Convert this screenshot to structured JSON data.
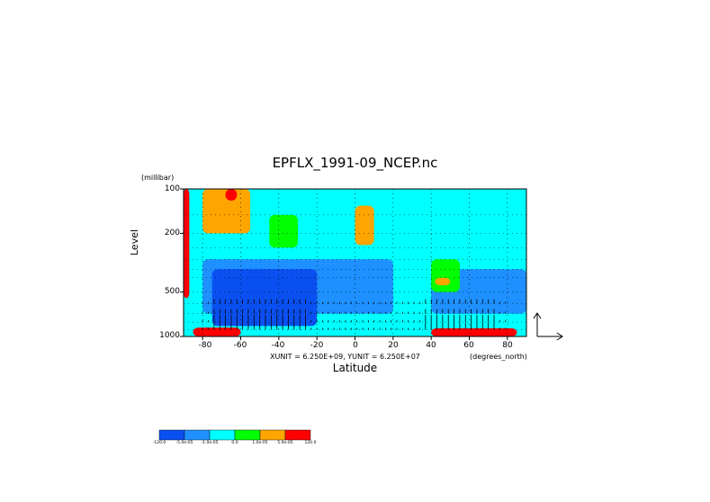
{
  "chart_data": {
    "type": "heatmap",
    "title": "EPFLX_1991-09_NCEP.nc",
    "ylabel": "Level",
    "yunits": "(millibar)",
    "xlabel": "Latitude",
    "xunits": "(degrees_north)",
    "vector_scale": "XUNIT = 6.250E+09, YUNIT = 6.250E+07",
    "y_axis": {
      "scale": "log",
      "reversed": true,
      "range": [
        100,
        1000
      ],
      "ticks": [
        "100",
        "200",
        "500",
        "1000"
      ]
    },
    "x_axis": {
      "range": [
        -90,
        90
      ],
      "ticks": [
        "-80",
        "-60",
        "-40",
        "-20",
        "0",
        "20",
        "40",
        "60",
        "80"
      ]
    },
    "grid": true,
    "colorbar": {
      "levels": [
        "-120.0",
        "-5.0e-05",
        "-1.0e-05",
        "0.0",
        "1.0e-05",
        "5.0e-05",
        "120.0"
      ],
      "colors": [
        "#0a50f0",
        "#1e90ff",
        "#00ffff",
        "#00ff00",
        "#ffa500",
        "#ff0000"
      ]
    },
    "regions": [
      {
        "class": 2,
        "lat_range": [
          -90,
          90
        ],
        "lev_range": [
          100,
          1000
        ]
      },
      {
        "class": 1,
        "lat_range": [
          -80,
          20
        ],
        "lev_range": [
          300,
          700
        ]
      },
      {
        "class": 0,
        "lat_range": [
          -75,
          -20
        ],
        "lev_range": [
          350,
          850
        ]
      },
      {
        "class": 1,
        "lat_range": [
          40,
          90
        ],
        "lev_range": [
          350,
          700
        ]
      },
      {
        "class": 4,
        "lat_range": [
          -80,
          -55
        ],
        "lev_range": [
          100,
          200
        ]
      },
      {
        "class": 5,
        "lat_range": [
          -68,
          -62
        ],
        "lev_range": [
          100,
          120
        ]
      },
      {
        "class": 4,
        "lat_range": [
          0,
          10
        ],
        "lev_range": [
          130,
          240
        ]
      },
      {
        "class": 3,
        "lat_range": [
          -45,
          -30
        ],
        "lev_range": [
          150,
          250
        ]
      },
      {
        "class": 3,
        "lat_range": [
          40,
          55
        ],
        "lev_range": [
          300,
          500
        ]
      },
      {
        "class": 4,
        "lat_range": [
          42,
          50
        ],
        "lev_range": [
          400,
          450
        ]
      },
      {
        "class": 5,
        "lat_range": [
          -85,
          -60
        ],
        "lev_range": [
          870,
          1000
        ]
      },
      {
        "class": 5,
        "lat_range": [
          40,
          85
        ],
        "lev_range": [
          880,
          1000
        ]
      },
      {
        "class": 5,
        "lat_range": [
          -90,
          -87
        ],
        "lev_range": [
          100,
          550
        ]
      }
    ]
  }
}
